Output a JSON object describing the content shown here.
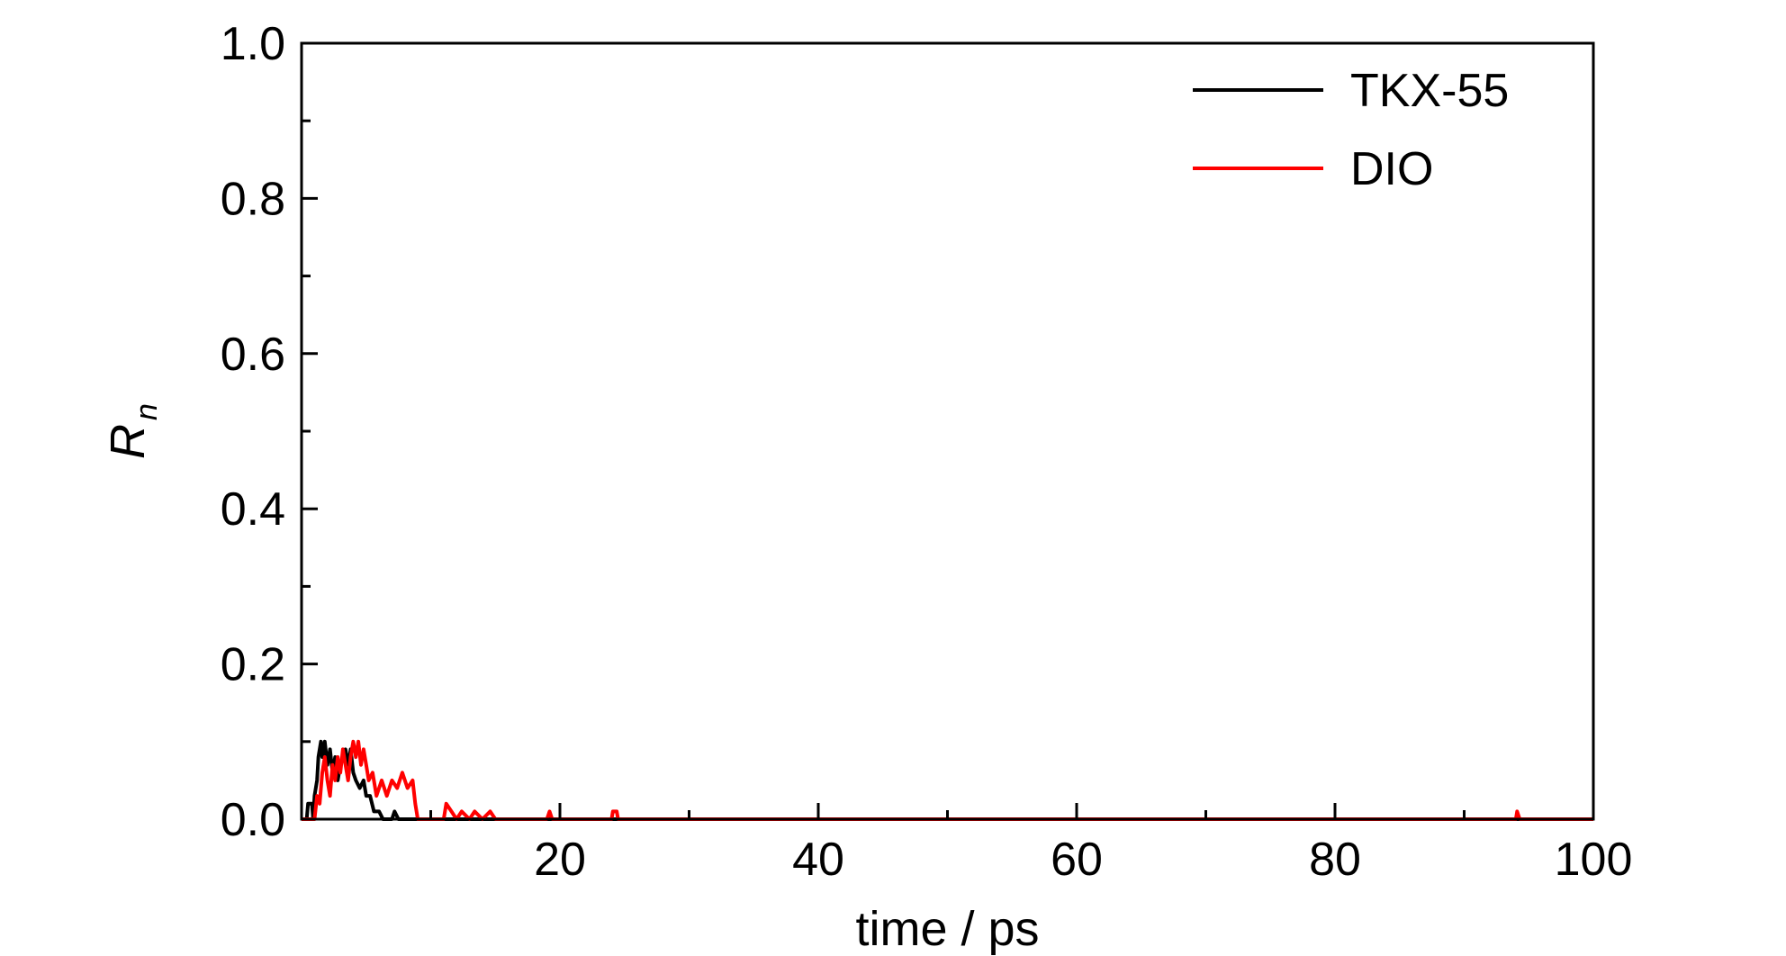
{
  "chart_data": {
    "type": "line",
    "xlabel": "time / ps",
    "ylabel_main": "R",
    "ylabel_sub": "n",
    "xlim": [
      0,
      100
    ],
    "ylim": [
      0.0,
      1.0
    ],
    "x_ticks": [
      20,
      40,
      60,
      80,
      100
    ],
    "x_tick_labels": [
      "20",
      "40",
      "60",
      "80",
      "100"
    ],
    "x_minor_ticks": [
      10,
      30,
      50,
      70,
      90
    ],
    "y_ticks": [
      0.0,
      0.2,
      0.4,
      0.6,
      0.8,
      1.0
    ],
    "y_tick_labels": [
      "0.0",
      "0.2",
      "0.4",
      "0.6",
      "0.8",
      "1.0"
    ],
    "y_minor_ticks": [
      0.1,
      0.3,
      0.5,
      0.7,
      0.9
    ],
    "grid": false,
    "legend_position": "top-right",
    "series": [
      {
        "name": "TKX-55",
        "color": "#000000",
        "points": [
          [
            0.0,
            0.0
          ],
          [
            0.4,
            0.0
          ],
          [
            0.5,
            0.02
          ],
          [
            0.8,
            0.02
          ],
          [
            0.9,
            0.0
          ],
          [
            1.0,
            0.03
          ],
          [
            1.2,
            0.05
          ],
          [
            1.3,
            0.08
          ],
          [
            1.5,
            0.1
          ],
          [
            1.6,
            0.08
          ],
          [
            1.8,
            0.1
          ],
          [
            2.0,
            0.07
          ],
          [
            2.2,
            0.09
          ],
          [
            2.4,
            0.06
          ],
          [
            2.6,
            0.08
          ],
          [
            2.8,
            0.05
          ],
          [
            3.0,
            0.07
          ],
          [
            3.2,
            0.08
          ],
          [
            3.4,
            0.09
          ],
          [
            3.6,
            0.07
          ],
          [
            3.8,
            0.09
          ],
          [
            4.0,
            0.06
          ],
          [
            4.2,
            0.05
          ],
          [
            4.5,
            0.04
          ],
          [
            4.8,
            0.05
          ],
          [
            5.0,
            0.03
          ],
          [
            5.3,
            0.03
          ],
          [
            5.6,
            0.01
          ],
          [
            6.0,
            0.01
          ],
          [
            6.3,
            0.0
          ],
          [
            7.0,
            0.0
          ],
          [
            7.2,
            0.01
          ],
          [
            7.5,
            0.0
          ],
          [
            10.0,
            0.0
          ],
          [
            100.0,
            0.0
          ]
        ]
      },
      {
        "name": "DIO",
        "color": "#ff0000",
        "points": [
          [
            0.0,
            0.0
          ],
          [
            1.0,
            0.0
          ],
          [
            1.2,
            0.03
          ],
          [
            1.4,
            0.02
          ],
          [
            1.6,
            0.06
          ],
          [
            1.8,
            0.08
          ],
          [
            2.0,
            0.05
          ],
          [
            2.2,
            0.03
          ],
          [
            2.4,
            0.07
          ],
          [
            2.6,
            0.05
          ],
          [
            2.8,
            0.08
          ],
          [
            3.0,
            0.06
          ],
          [
            3.2,
            0.09
          ],
          [
            3.4,
            0.07
          ],
          [
            3.6,
            0.05
          ],
          [
            3.8,
            0.08
          ],
          [
            4.0,
            0.1
          ],
          [
            4.2,
            0.08
          ],
          [
            4.4,
            0.1
          ],
          [
            4.6,
            0.07
          ],
          [
            4.8,
            0.09
          ],
          [
            5.0,
            0.07
          ],
          [
            5.2,
            0.05
          ],
          [
            5.5,
            0.06
          ],
          [
            5.8,
            0.03
          ],
          [
            6.2,
            0.05
          ],
          [
            6.6,
            0.03
          ],
          [
            7.0,
            0.05
          ],
          [
            7.4,
            0.04
          ],
          [
            7.8,
            0.06
          ],
          [
            8.2,
            0.04
          ],
          [
            8.6,
            0.05
          ],
          [
            8.8,
            0.02
          ],
          [
            9.0,
            0.0
          ],
          [
            11.0,
            0.0
          ],
          [
            11.2,
            0.02
          ],
          [
            11.6,
            0.01
          ],
          [
            12.0,
            0.0
          ],
          [
            12.4,
            0.01
          ],
          [
            13.0,
            0.0
          ],
          [
            13.4,
            0.01
          ],
          [
            14.0,
            0.0
          ],
          [
            14.6,
            0.01
          ],
          [
            15.0,
            0.0
          ],
          [
            17.0,
            0.0
          ],
          [
            19.0,
            0.0
          ],
          [
            19.2,
            0.01
          ],
          [
            19.4,
            0.0
          ],
          [
            24.0,
            0.0
          ],
          [
            24.1,
            0.01
          ],
          [
            24.4,
            0.01
          ],
          [
            24.5,
            0.0
          ],
          [
            94.0,
            0.0
          ],
          [
            94.1,
            0.01
          ],
          [
            94.3,
            0.0
          ],
          [
            100.0,
            0.0
          ]
        ]
      }
    ]
  }
}
